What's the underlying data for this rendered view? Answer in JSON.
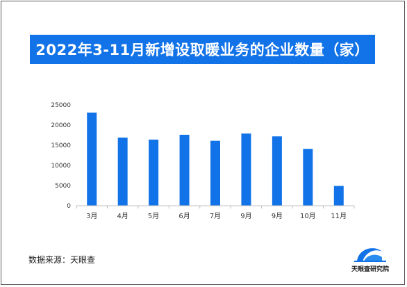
{
  "title": "2022年3-11月新增设取暖业务的企业数量（家）",
  "source": "数据来源：天眼查",
  "logo_text": "天眼查研究院",
  "colors": {
    "bar": "#1273e8",
    "title_bg": "#1273e8",
    "axis": "#bfbfbf"
  },
  "chart_data": {
    "type": "bar",
    "categories": [
      "3月",
      "4月",
      "5月",
      "6月",
      "7月",
      "9月",
      "9月",
      "10月",
      "11月"
    ],
    "values": [
      23100,
      16900,
      16400,
      17600,
      16100,
      17900,
      17200,
      14100,
      4900
    ],
    "ylim": [
      0,
      25000
    ],
    "yticks": [
      "0",
      "5000",
      "10000",
      "15000",
      "20000",
      "25000"
    ],
    "grid": false,
    "legend": "none"
  }
}
